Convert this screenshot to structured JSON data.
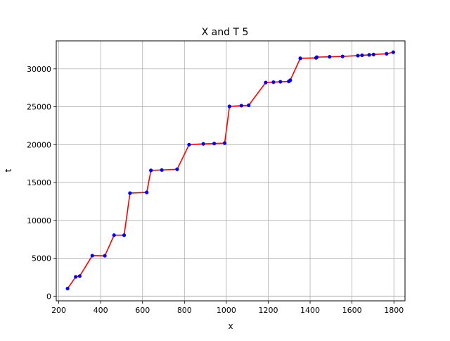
{
  "chart_data": {
    "type": "line",
    "title": "X and T 5",
    "xlabel": "x",
    "ylabel": "t",
    "xlim": [
      188,
      1853
    ],
    "ylim": [
      -620,
      33700
    ],
    "xticks": [
      200,
      400,
      600,
      800,
      1000,
      1200,
      1400,
      1600,
      1800
    ],
    "yticks": [
      0,
      5000,
      10000,
      15000,
      20000,
      25000,
      30000
    ],
    "grid": true,
    "line_color": "#ff0000",
    "marker_color": "#0000ff",
    "x": [
      242,
      281,
      300,
      360,
      420,
      464,
      512,
      540,
      620,
      640,
      692,
      765,
      822,
      890,
      942,
      992,
      1015,
      1072,
      1107,
      1188,
      1225,
      1258,
      1298,
      1305,
      1353,
      1428,
      1432,
      1493,
      1555,
      1628,
      1648,
      1682,
      1703,
      1765,
      1797
    ],
    "y": [
      1000,
      2550,
      2650,
      5350,
      5330,
      8050,
      8050,
      13600,
      13700,
      16600,
      16650,
      16750,
      20000,
      20100,
      20150,
      20200,
      25050,
      25150,
      25200,
      28200,
      28250,
      28300,
      28350,
      28500,
      31400,
      31450,
      31550,
      31600,
      31650,
      31750,
      31800,
      31850,
      31900,
      32000,
      32200
    ]
  }
}
